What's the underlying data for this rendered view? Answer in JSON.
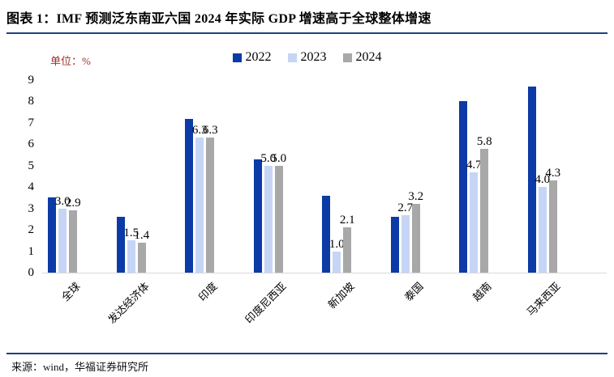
{
  "header": {
    "title": "图表 1：IMF 预测泛东南亚六国 2024 年实际 GDP 增速高于全球整体增速"
  },
  "chart": {
    "unit_label": "单位：%"
  },
  "chart_data": {
    "type": "bar",
    "title": "IMF 预测泛东南亚六国 2024 年实际 GDP 增速高于全球整体增速",
    "unit": "%",
    "categories": [
      "全球",
      "发达经济体",
      "印度",
      "印度尼西亚",
      "新加坡",
      "泰国",
      "越南",
      "马来西亚"
    ],
    "series": [
      {
        "name": "2022",
        "color": "#0C3AA6",
        "show_labels": false,
        "values": [
          3.5,
          2.6,
          7.2,
          5.3,
          3.6,
          2.6,
          8.0,
          8.7
        ]
      },
      {
        "name": "2023",
        "color": "#C6D5F5",
        "show_labels": true,
        "values": [
          3.0,
          1.5,
          6.3,
          5.0,
          1.0,
          2.7,
          4.7,
          4.0
        ]
      },
      {
        "name": "2024",
        "color": "#A8A8A8",
        "show_labels": true,
        "values": [
          2.9,
          1.4,
          6.3,
          5.0,
          2.1,
          3.2,
          5.8,
          4.3
        ]
      }
    ],
    "ylim": [
      0,
      9
    ],
    "yticks": [
      0,
      1,
      2,
      3,
      4,
      5,
      6,
      7,
      8,
      9
    ],
    "grid": false,
    "legend_position": "top-center",
    "xlabel": "",
    "ylabel": "单位：%"
  },
  "footer": {
    "source": "来源：wind，华福证券研究所"
  }
}
